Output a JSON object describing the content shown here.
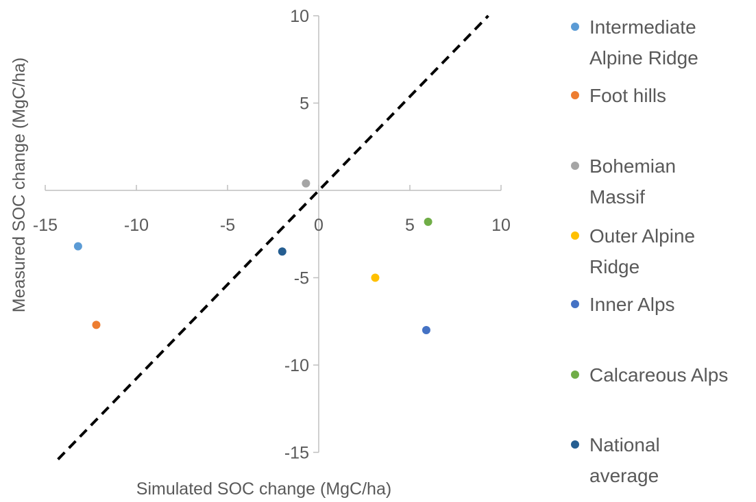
{
  "chart_data": {
    "type": "scatter",
    "xlabel": "Simulated SOC change (MgC/ha)",
    "ylabel": "Measured SOC change (MgC/ha)",
    "xlim": [
      -15,
      10
    ],
    "ylim": [
      -15,
      10
    ],
    "x_ticks": [
      -15,
      -10,
      -5,
      0,
      5,
      10
    ],
    "y_ticks": [
      -15,
      -10,
      -5,
      5,
      10
    ],
    "grid": false,
    "legend_position": "right",
    "reference_line": {
      "style": "dashed",
      "color": "#000000",
      "x": [
        -14.3,
        9.3
      ],
      "y": [
        -15.4,
        10
      ]
    },
    "series": [
      {
        "name": "Intermediate Alpine Ridge",
        "lines": [
          "Intermediate",
          "Alpine Ridge"
        ],
        "color": "#5B9BD5",
        "x": [
          -13.2
        ],
        "y": [
          -3.2
        ]
      },
      {
        "name": "Foot hills",
        "lines": [
          "Foot hills"
        ],
        "color": "#ED7D31",
        "x": [
          -12.2
        ],
        "y": [
          -7.7
        ]
      },
      {
        "name": "Bohemian Massif",
        "lines": [
          "Bohemian",
          "Massif"
        ],
        "color": "#A5A5A5",
        "x": [
          -0.7
        ],
        "y": [
          0.4
        ]
      },
      {
        "name": "Outer Alpine Ridge",
        "lines": [
          "Outer Alpine",
          "Ridge"
        ],
        "color": "#FFC000",
        "x": [
          3.1
        ],
        "y": [
          -5.0
        ]
      },
      {
        "name": "Inner Alps",
        "lines": [
          "Inner Alps"
        ],
        "color": "#4472C4",
        "x": [
          5.9
        ],
        "y": [
          -8.0
        ]
      },
      {
        "name": "Calcareous Alps",
        "lines": [
          "Calcareous Alps"
        ],
        "color": "#70AD47",
        "x": [
          6.0
        ],
        "y": [
          -1.8
        ]
      },
      {
        "name": "National average",
        "lines": [
          "National",
          "average"
        ],
        "color": "#255E91",
        "x": [
          -2.0
        ],
        "y": [
          -3.5
        ]
      }
    ]
  }
}
